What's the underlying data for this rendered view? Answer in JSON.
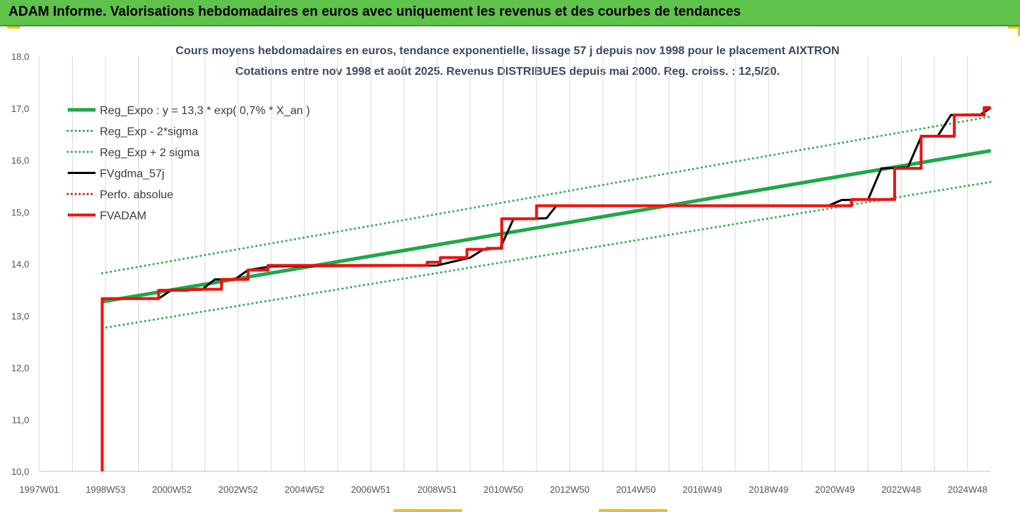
{
  "header": {
    "title": "ADAM Informe. Valorisations hebdomadaires en euros avec uniquement les revenus et des courbes de tendances"
  },
  "colors": {
    "header_bg": "#5fc24a",
    "trend_green": "#1fa84a",
    "sigma_green": "#2bb04e",
    "smooth_black": "#000000",
    "adam_red": "#ee1111",
    "corner_yellow": "#f2c200"
  },
  "chart_data": {
    "type": "line",
    "title_line1": "Cours moyens hebdomadaires en euros, tendance exponentielle, lissage 57 j depuis nov 1998 pour le placement AIXTRON",
    "title_line2": "Cotations entre nov 1998 et août 2025. Revenus DISTRIBUES depuis mai 2000. Reg. croiss. : 12,5/20.",
    "xlabel": "",
    "ylabel": "",
    "ylim": [
      10.0,
      18.0
    ],
    "xlim": [
      1997.0,
      2025.7
    ],
    "grid": "vertical",
    "legend_position": "top-left",
    "y_ticks": [
      "10,0",
      "11,0",
      "12,0",
      "13,0",
      "14,0",
      "15,0",
      "16,0",
      "17,0",
      "18,0"
    ],
    "x_ticks": [
      {
        "x": 1997.0,
        "label": "1997W01"
      },
      {
        "x": 1999.0,
        "label": "1998W53"
      },
      {
        "x": 2001.0,
        "label": "2000W52"
      },
      {
        "x": 2003.0,
        "label": "2002W52"
      },
      {
        "x": 2005.0,
        "label": "2004W52"
      },
      {
        "x": 2007.0,
        "label": "2006W51"
      },
      {
        "x": 2009.0,
        "label": "2008W51"
      },
      {
        "x": 2011.0,
        "label": "2010W50"
      },
      {
        "x": 2013.0,
        "label": "2012W50"
      },
      {
        "x": 2015.0,
        "label": "2014W50"
      },
      {
        "x": 2017.0,
        "label": "2016W49"
      },
      {
        "x": 2019.0,
        "label": "2018W49"
      },
      {
        "x": 2021.0,
        "label": "2020W49"
      },
      {
        "x": 2023.0,
        "label": "2022W48"
      },
      {
        "x": 2025.0,
        "label": "2024W48"
      }
    ],
    "series": [
      {
        "name": "Reg_Expo : y = 13,3 * exp( 0,7% *  X_an )",
        "style": "solid-thick",
        "color": "#1fa84a",
        "x": [
          1998.9,
          2025.7
        ],
        "y": [
          13.27,
          16.18
        ]
      },
      {
        "name": "Reg_Exp - 2*sigma",
        "style": "dotted",
        "color": "#2bb04e",
        "x": [
          1998.9,
          2025.7
        ],
        "y": [
          12.76,
          15.58
        ]
      },
      {
        "name": "Reg_Exp + 2 sigma",
        "style": "dotted",
        "color": "#2bb04e",
        "x": [
          1998.9,
          2025.7
        ],
        "y": [
          13.82,
          16.84
        ]
      },
      {
        "name": "FVgdma_57j",
        "style": "solid",
        "color": "#000000",
        "x": [
          1998.9,
          2000.6,
          2001.0,
          2001.9,
          2002.3,
          2002.9,
          2003.3,
          2004.0,
          2009.0,
          2009.4,
          2010.0,
          2010.4,
          2010.9,
          2011.3,
          2012.3,
          2012.6,
          2020.8,
          2021.2,
          2022.0,
          2022.4,
          2023.2,
          2023.6,
          2024.1,
          2024.5,
          2025.4,
          2025.7
        ],
        "y": [
          13.33,
          13.33,
          13.5,
          13.5,
          13.7,
          13.7,
          13.88,
          13.95,
          13.97,
          14.03,
          14.12,
          14.28,
          14.3,
          14.86,
          14.88,
          15.12,
          15.12,
          15.23,
          15.24,
          15.84,
          15.86,
          16.45,
          16.46,
          16.87,
          16.88,
          17.01
        ]
      },
      {
        "name": "Perfo. absolue",
        "style": "dotted",
        "color": "#ee1111",
        "x": [],
        "y": []
      },
      {
        "name": "FVADAM",
        "style": "solid-thick",
        "color": "#ee1111",
        "x": [
          1998.9,
          1998.9,
          2000.6,
          2000.6,
          2001.5,
          2001.5,
          2002.5,
          2002.5,
          2003.3,
          2003.3,
          2003.9,
          2003.9,
          2008.7,
          2008.7,
          2009.1,
          2009.1,
          2009.9,
          2009.9,
          2010.5,
          2010.5,
          2010.95,
          2010.95,
          2012.0,
          2012.0,
          2021.5,
          2021.5,
          2022.8,
          2022.8,
          2023.6,
          2023.6,
          2024.6,
          2024.6,
          2025.5,
          2025.5,
          2025.7
        ],
        "y": [
          10.0,
          13.33,
          13.33,
          13.49,
          13.49,
          13.51,
          13.51,
          13.7,
          13.7,
          13.88,
          13.88,
          13.97,
          13.97,
          14.03,
          14.03,
          14.12,
          14.12,
          14.28,
          14.28,
          14.3,
          14.3,
          14.87,
          14.87,
          15.12,
          15.12,
          15.24,
          15.24,
          15.84,
          15.84,
          16.46,
          16.46,
          16.87,
          16.87,
          17.01,
          17.01
        ]
      }
    ]
  }
}
